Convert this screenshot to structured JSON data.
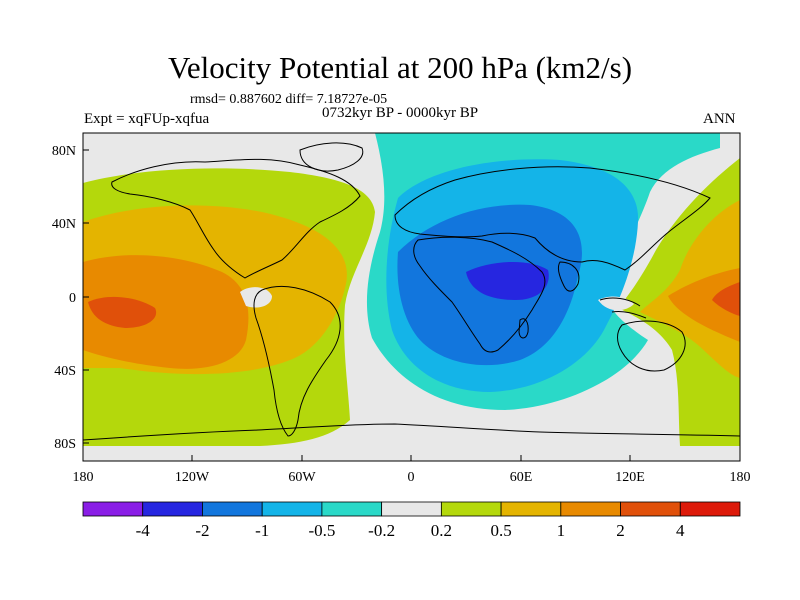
{
  "title": "Velocity Potential at 200 hPa (km2/s)",
  "stats": "rmsd= 0.887602 diff= 7.18727e-05",
  "left_label": "Expt = xqFUp-xqfua",
  "center_label": "0732kyr BP - 0000kyr BP",
  "right_label": "ANN",
  "lat_labels": [
    "80N",
    "40N",
    "0",
    "40S",
    "80S"
  ],
  "lon_labels": [
    "180",
    "120W",
    "60W",
    "0",
    "60E",
    "120E",
    "180"
  ],
  "colorbar": {
    "colors": [
      "#8a1ee6",
      "#2626e0",
      "#1276dd",
      "#14b4e8",
      "#2ad9c8",
      "#e8e8e8",
      "#b4d80c",
      "#e4b400",
      "#e88a00",
      "#e0500a",
      "#dd1a0a"
    ],
    "labels": [
      "-4",
      "-2",
      "-1",
      "-0.5",
      "-0.2",
      "0.2",
      "0.5",
      "1",
      "2",
      "4"
    ]
  },
  "palette": {
    "neutral": "#e8e8e8",
    "neg1": "#2ad9c8",
    "neg2": "#14b4e8",
    "neg3": "#1276dd",
    "neg4": "#2626e0",
    "pos1": "#b4d80c",
    "pos2": "#e4b400",
    "pos3": "#e88a00",
    "pos4": "#e0500a"
  }
}
